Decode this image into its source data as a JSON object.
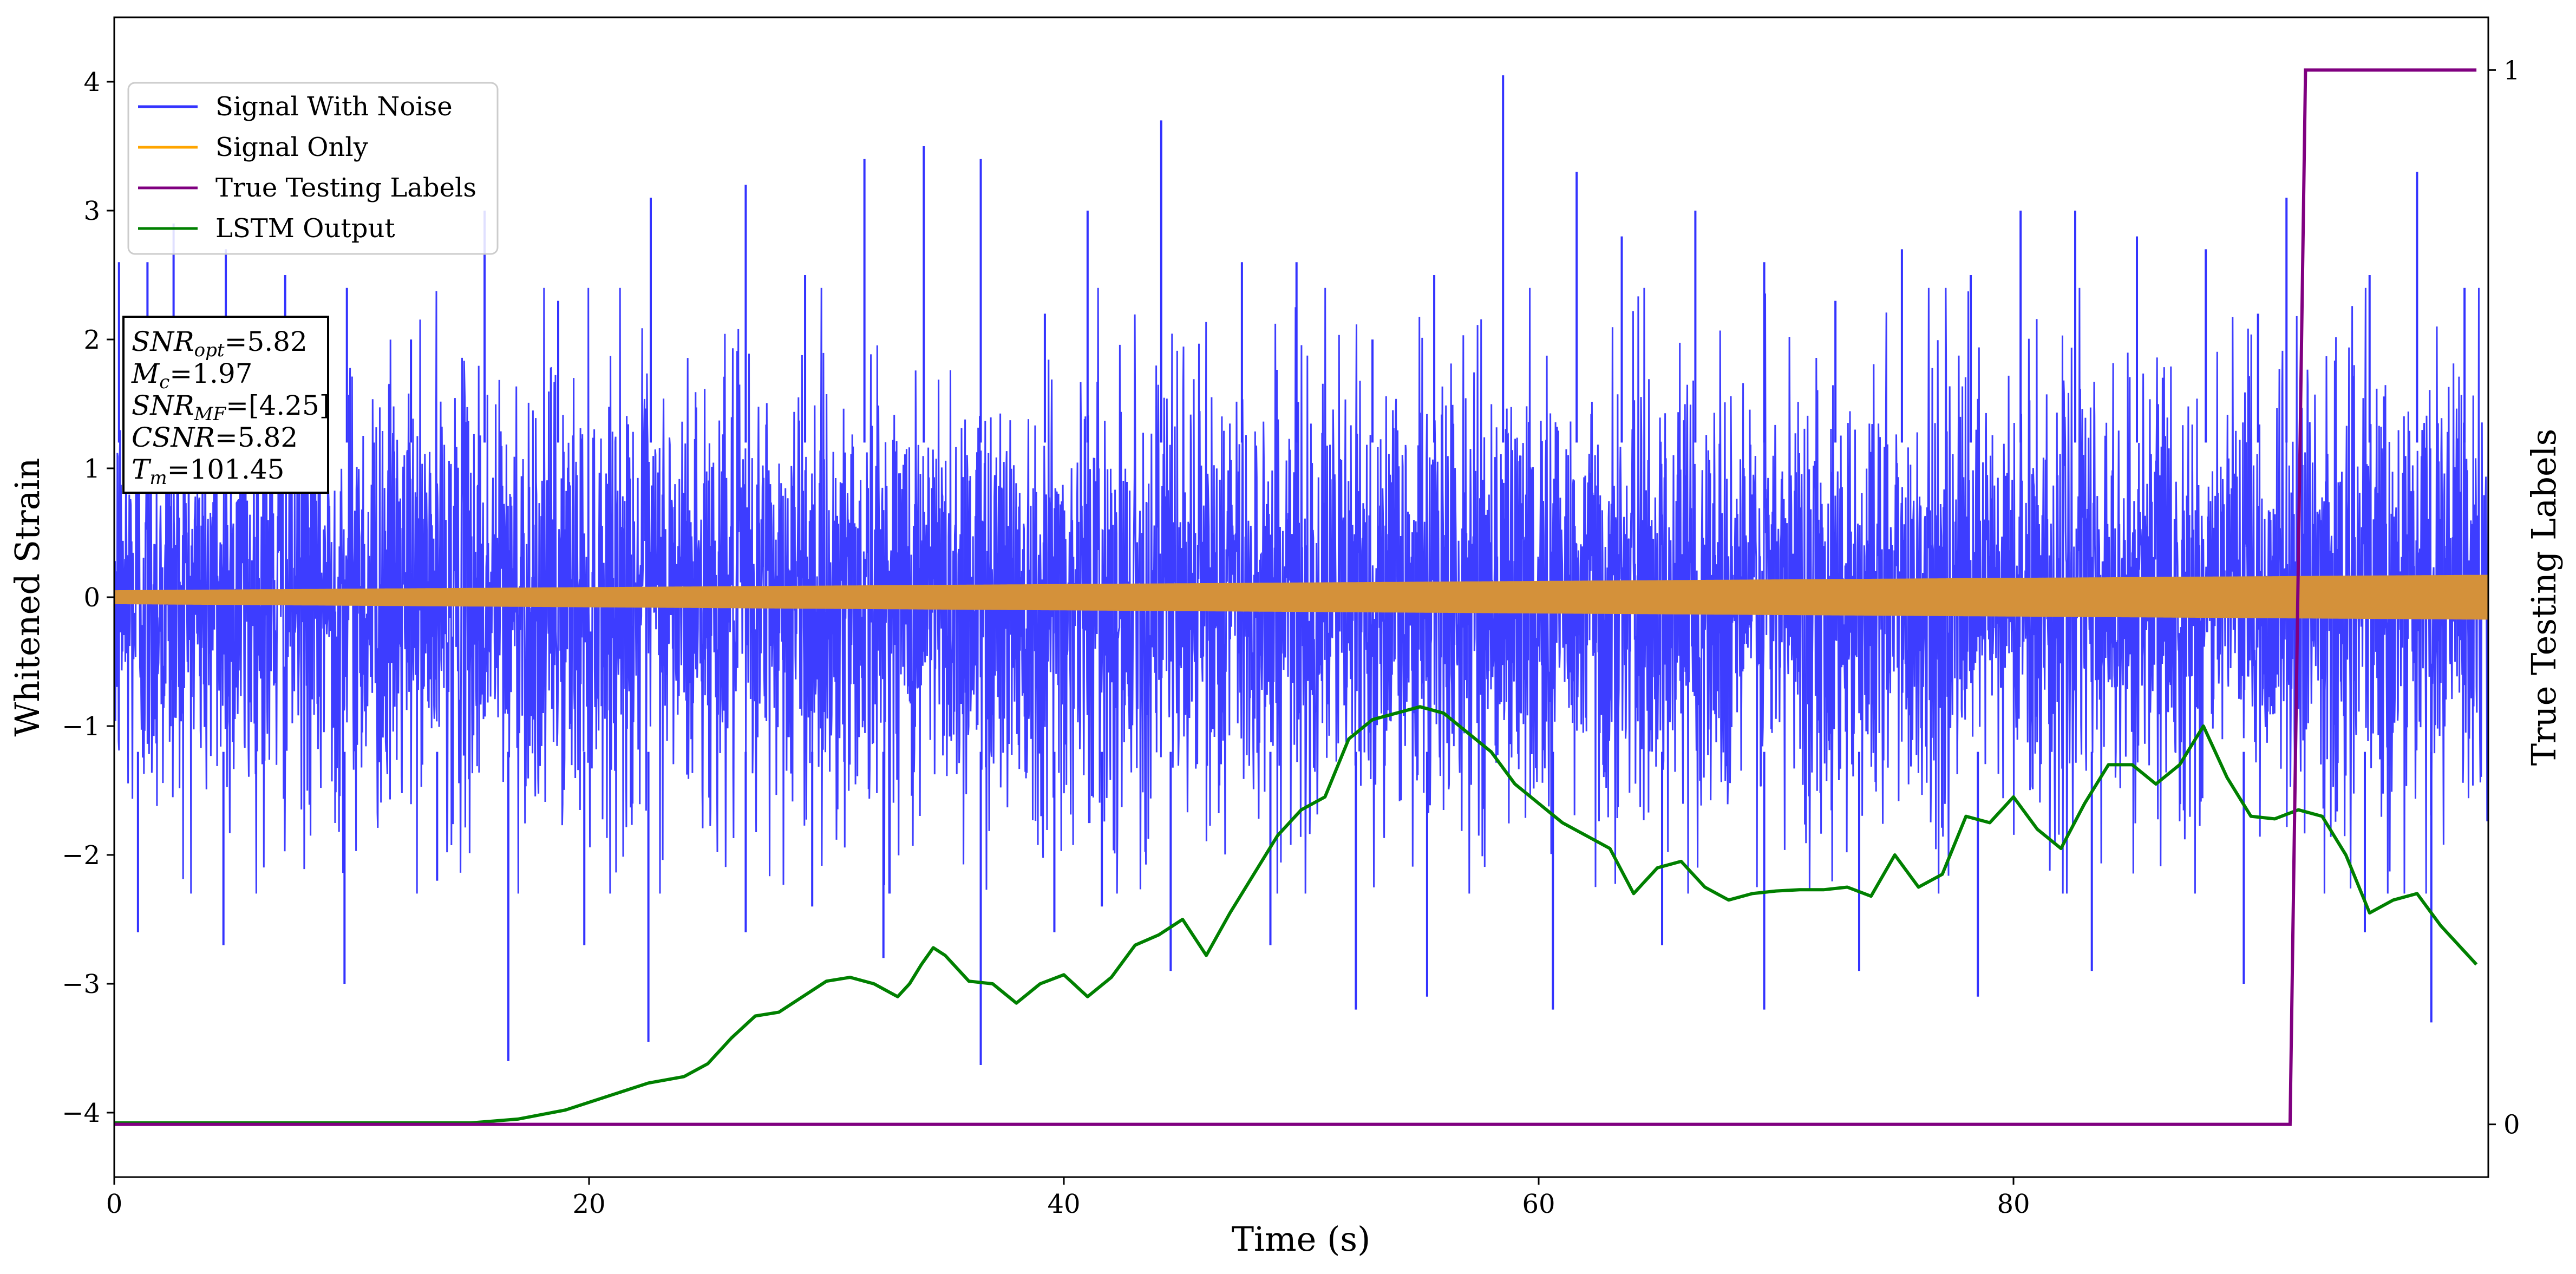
{
  "chart_data": {
    "type": "line",
    "xlabel": "Time (s)",
    "ylabel": "Whitened Strain",
    "y2label": "True Testing Labels",
    "xlim": [
      0,
      100
    ],
    "ylim": [
      -4.5,
      4.5
    ],
    "y2lim": [
      -0.05,
      1.05
    ],
    "xticks": [
      0,
      20,
      40,
      60,
      80
    ],
    "yticks": [
      -4,
      -3,
      -2,
      -1,
      0,
      1,
      2,
      3,
      4
    ],
    "y2ticks": [
      0,
      1
    ],
    "legend": {
      "position": "top-left",
      "entries": [
        "Signal With Noise",
        "Signal Only",
        "True Testing Labels",
        "LSTM Output"
      ]
    },
    "info_box": {
      "lines": [
        {
          "name": "SNR",
          "sub": "opt",
          "value": "=5.82"
        },
        {
          "name": "M",
          "sub": "c",
          "value": "=1.97"
        },
        {
          "name": "SNR",
          "sub": "MF",
          "value": "=[4.25]"
        },
        {
          "name": "CSNR",
          "sub": "",
          "value": "=5.82"
        },
        {
          "name": "T",
          "sub": "m",
          "value": "=101.45"
        }
      ]
    },
    "series": [
      {
        "name": "Signal With Noise",
        "axis": "left",
        "color": "#3333ff",
        "noise_sigma": 0.85,
        "peaks": [
          [
            0.2,
            2.6
          ],
          [
            1.4,
            2.6
          ],
          [
            2.5,
            2.9
          ],
          [
            4.7,
            2.7
          ],
          [
            7.2,
            2.5
          ],
          [
            9.8,
            2.4
          ],
          [
            12.5,
            2.0
          ],
          [
            15.6,
            3.0
          ],
          [
            18.7,
            2.3
          ],
          [
            22.6,
            3.1
          ],
          [
            26.6,
            3.2
          ],
          [
            29.1,
            2.5
          ],
          [
            31.6,
            3.4
          ],
          [
            34.1,
            3.5
          ],
          [
            36.5,
            3.4
          ],
          [
            39.2,
            2.2
          ],
          [
            41.0,
            3.0
          ],
          [
            44.1,
            3.7
          ],
          [
            47.5,
            2.6
          ],
          [
            49.8,
            2.6
          ],
          [
            53.0,
            2.0
          ],
          [
            55.6,
            2.5
          ],
          [
            58.5,
            4.05
          ],
          [
            61.6,
            3.3
          ],
          [
            63.5,
            2.8
          ],
          [
            66.6,
            3.0
          ],
          [
            69.5,
            2.6
          ],
          [
            72.5,
            2.3
          ],
          [
            75.3,
            2.7
          ],
          [
            78.2,
            2.5
          ],
          [
            80.3,
            3.0
          ],
          [
            82.6,
            3.0
          ],
          [
            85.2,
            2.8
          ],
          [
            88.1,
            2.7
          ],
          [
            90.3,
            2.2
          ],
          [
            91.5,
            3.1
          ],
          [
            95.0,
            2.5
          ],
          [
            97.0,
            3.3
          ],
          [
            99.0,
            2.4
          ],
          [
            1.0,
            -2.6
          ],
          [
            4.6,
            -2.7
          ],
          [
            9.7,
            -3.0
          ],
          [
            13.6,
            -2.2
          ],
          [
            16.6,
            -3.6
          ],
          [
            19.8,
            -2.7
          ],
          [
            22.5,
            -3.45
          ],
          [
            26.6,
            -2.6
          ],
          [
            29.4,
            -2.4
          ],
          [
            32.4,
            -2.8
          ],
          [
            36.5,
            -3.63
          ],
          [
            39.6,
            -2.6
          ],
          [
            41.6,
            -2.4
          ],
          [
            44.5,
            -2.9
          ],
          [
            48.7,
            -2.7
          ],
          [
            52.3,
            -3.2
          ],
          [
            55.3,
            -3.1
          ],
          [
            60.6,
            -3.2
          ],
          [
            65.2,
            -2.7
          ],
          [
            69.5,
            -3.2
          ],
          [
            73.5,
            -2.9
          ],
          [
            78.5,
            -3.1
          ],
          [
            83.3,
            -2.9
          ],
          [
            89.7,
            -3.0
          ],
          [
            94.8,
            -2.6
          ],
          [
            97.6,
            -3.3
          ]
        ]
      },
      {
        "name": "Signal Only",
        "axis": "left",
        "color": "#ffa500",
        "amplitude_start": 0.05,
        "amplitude_end": 0.17
      },
      {
        "name": "True Testing Labels",
        "axis": "right",
        "color": "#800080",
        "x": [
          0,
          91.65,
          92.3,
          99.5
        ],
        "y": [
          0,
          0,
          1,
          1
        ]
      },
      {
        "name": "LSTM Output",
        "axis": "left",
        "color": "#008000",
        "x": [
          0,
          5,
          10,
          15,
          17,
          19,
          21,
          22.5,
          24,
          25,
          26,
          27,
          28,
          29,
          30,
          31,
          32,
          33,
          33.5,
          34,
          34.5,
          35,
          36,
          37,
          38,
          39,
          40,
          41,
          42,
          43,
          44,
          45,
          46,
          47,
          48,
          49,
          50,
          51,
          52,
          53,
          54,
          55,
          56,
          57,
          58,
          59,
          60,
          61,
          62,
          63,
          64,
          65,
          66,
          67,
          68,
          69,
          70,
          71,
          72,
          73,
          74,
          75,
          76,
          77,
          78,
          79,
          80,
          81,
          82,
          83,
          84,
          85,
          86,
          87,
          88,
          89,
          90,
          91,
          92,
          93,
          94,
          95,
          96,
          97,
          98,
          99.5
        ],
        "y": [
          -4.08,
          -4.08,
          -4.08,
          -4.08,
          -4.05,
          -3.98,
          -3.86,
          -3.77,
          -3.72,
          -3.62,
          -3.42,
          -3.25,
          -3.22,
          -3.1,
          -2.98,
          -2.95,
          -3.0,
          -3.1,
          -3.0,
          -2.85,
          -2.72,
          -2.78,
          -2.98,
          -3.0,
          -3.15,
          -3.0,
          -2.93,
          -3.1,
          -2.95,
          -2.7,
          -2.62,
          -2.5,
          -2.78,
          -2.45,
          -2.15,
          -1.85,
          -1.65,
          -1.55,
          -1.1,
          -0.95,
          -0.9,
          -0.85,
          -0.9,
          -1.05,
          -1.2,
          -1.45,
          -1.6,
          -1.75,
          -1.85,
          -1.95,
          -2.3,
          -2.1,
          -2.05,
          -2.25,
          -2.35,
          -2.3,
          -2.28,
          -2.27,
          -2.27,
          -2.25,
          -2.32,
          -2.0,
          -2.25,
          -2.15,
          -1.7,
          -1.75,
          -1.55,
          -1.8,
          -1.95,
          -1.6,
          -1.3,
          -1.3,
          -1.45,
          -1.3,
          -1.0,
          -1.4,
          -1.7,
          -1.72,
          -1.65,
          -1.7,
          -2.0,
          -2.45,
          -2.35,
          -2.3,
          -2.55,
          -2.85
        ]
      }
    ]
  }
}
